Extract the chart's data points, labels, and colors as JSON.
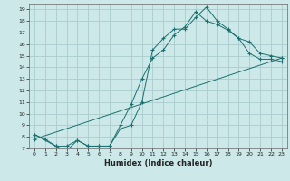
{
  "title": "",
  "xlabel": "Humidex (Indice chaleur)",
  "bg_color": "#cce8e8",
  "grid_color": "#aacccc",
  "line_color": "#1a7070",
  "xlim": [
    -0.5,
    23.5
  ],
  "ylim": [
    7,
    19.5
  ],
  "xticks": [
    0,
    1,
    2,
    3,
    4,
    5,
    6,
    7,
    8,
    9,
    10,
    11,
    12,
    13,
    14,
    15,
    16,
    17,
    18,
    19,
    20,
    21,
    22,
    23
  ],
  "yticks": [
    7,
    8,
    9,
    10,
    11,
    12,
    13,
    14,
    15,
    16,
    17,
    18,
    19
  ],
  "line1_x": [
    0,
    1,
    2,
    3,
    4,
    5,
    6,
    7,
    8,
    9,
    10,
    11,
    12,
    13,
    14,
    15,
    16,
    17,
    18,
    19,
    20,
    21,
    22,
    23
  ],
  "line1_y": [
    8.2,
    7.8,
    7.2,
    6.8,
    7.7,
    7.2,
    7.2,
    7.2,
    8.7,
    9.0,
    11.0,
    15.5,
    16.5,
    17.3,
    17.3,
    18.3,
    19.2,
    18.0,
    17.3,
    16.5,
    16.2,
    15.2,
    15.0,
    14.8
  ],
  "line2_x": [
    0,
    2,
    3,
    4,
    5,
    6,
    7,
    8,
    9,
    10,
    11,
    12,
    13,
    14,
    15,
    16,
    17,
    18,
    19,
    20,
    21,
    22,
    23
  ],
  "line2_y": [
    8.2,
    7.2,
    7.2,
    7.7,
    7.2,
    7.2,
    7.2,
    9.0,
    10.8,
    13.0,
    14.8,
    15.5,
    16.8,
    17.5,
    18.8,
    18.0,
    17.7,
    17.2,
    16.5,
    15.2,
    14.7,
    14.7,
    14.5
  ],
  "line3_x": [
    0,
    23
  ],
  "line3_y": [
    7.8,
    14.8
  ]
}
